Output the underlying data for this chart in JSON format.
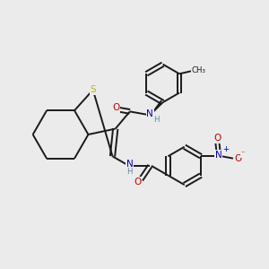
{
  "bg_color": "#ebebeb",
  "bond_color": "#1a1a1a",
  "atom_color_N": "#0000cc",
  "atom_color_O": "#cc0000",
  "atom_color_S": "#bbbb00",
  "atom_color_H": "#558899",
  "figsize": [
    3.0,
    3.0
  ],
  "dpi": 100,
  "xlim": [
    0,
    10
  ],
  "ylim": [
    0,
    10
  ]
}
